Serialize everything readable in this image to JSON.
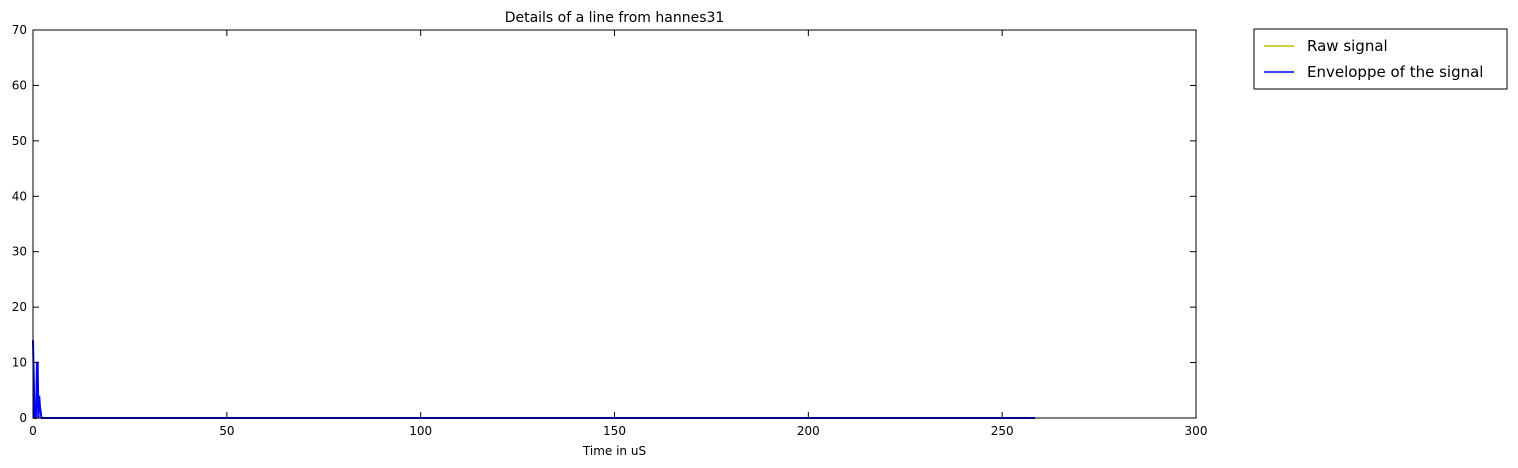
{
  "chart_data": {
    "type": "line",
    "title": "Details of a line from hannes31",
    "xlabel": "Time in uS",
    "ylabel": "",
    "xlim": [
      0,
      300
    ],
    "ylim": [
      0,
      70
    ],
    "xticks": [
      0,
      50,
      100,
      150,
      200,
      250,
      300
    ],
    "yticks": [
      0,
      10,
      20,
      30,
      40,
      50,
      60,
      70
    ],
    "xtick_labels": [
      "0",
      "50",
      "100",
      "150",
      "200",
      "250",
      "300"
    ],
    "ytick_labels": [
      "0",
      "10",
      "20",
      "30",
      "40",
      "50",
      "60",
      "70"
    ],
    "grid": false,
    "legend": {
      "placement": "outside-top-right"
    },
    "series": [
      {
        "name": "Raw signal",
        "color": "#bfbf00",
        "x": [
          0,
          0.4,
          0.7,
          1.0,
          1.3,
          1.6,
          2.0,
          2.5,
          5,
          50,
          100,
          150,
          200,
          258.5
        ],
        "y": [
          0,
          0,
          0,
          5,
          2,
          0,
          0,
          0,
          0,
          0,
          0,
          0,
          0,
          0
        ]
      },
      {
        "name": "Enveloppe of the signal",
        "color": "#0000ff",
        "x": [
          0,
          0.4,
          0.8,
          1.0,
          1.2,
          1.4,
          1.6,
          1.8,
          2.2,
          3,
          5,
          50,
          100,
          150,
          200,
          258.5
        ],
        "y": [
          14,
          0,
          0,
          10,
          10,
          0,
          4,
          2,
          0,
          0,
          0,
          0,
          0,
          0,
          0,
          0
        ]
      }
    ]
  }
}
